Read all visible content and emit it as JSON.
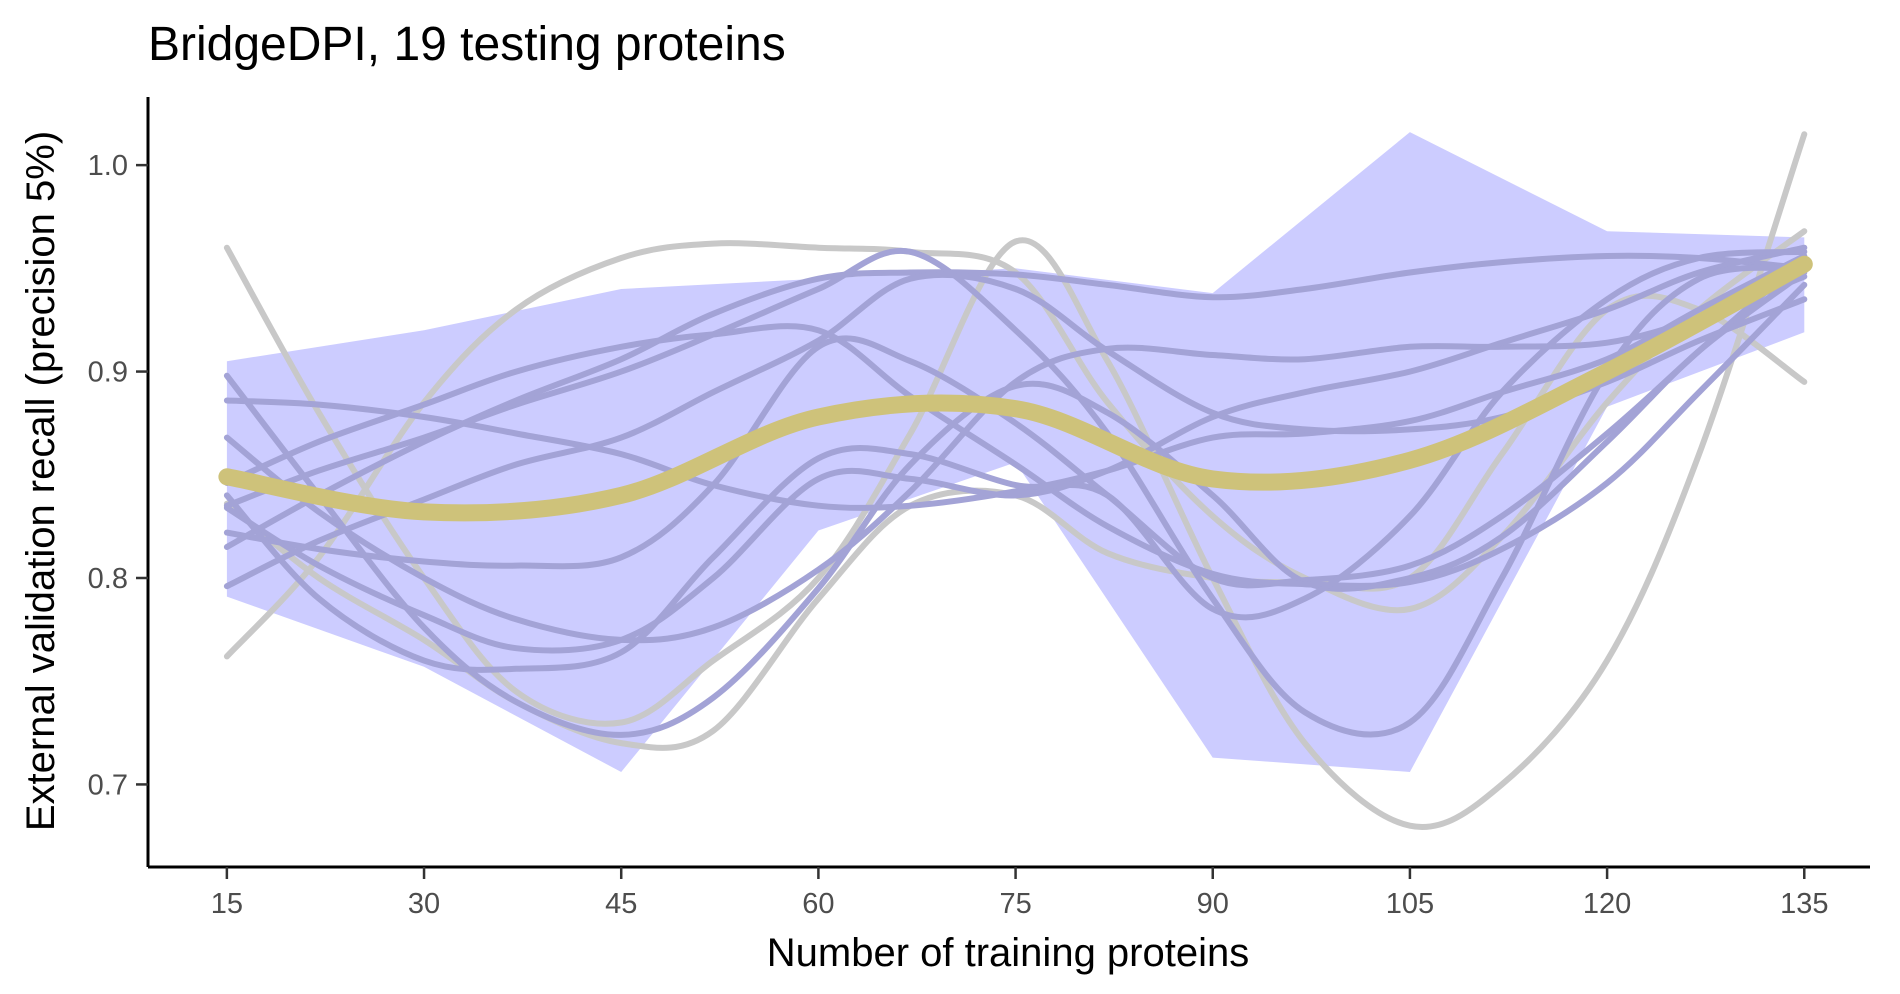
{
  "chart_data": {
    "type": "line",
    "title": "BridgeDPI, 19 testing proteins",
    "xlabel": "Number of training proteins",
    "ylabel": "External validation recall (precision 5%)",
    "x_ticks": [
      15,
      30,
      45,
      60,
      75,
      90,
      105,
      120,
      135
    ],
    "y_ticks": [
      0.7,
      0.8,
      0.9,
      1.0
    ],
    "y_tick_labels": [
      "0.7",
      "0.8",
      "0.9",
      "1.0"
    ],
    "xlim": [
      9,
      140
    ],
    "ylim": [
      0.66,
      1.033
    ],
    "grid": false,
    "legend": "none",
    "x": [
      15,
      30,
      45,
      60,
      75,
      90,
      105,
      120,
      135
    ],
    "colors": {
      "band": "#ccccff",
      "individual_in_band": "#a3a3d6",
      "individual_outlier": "#c8c8c8",
      "mean": "#cec27a"
    },
    "band": {
      "upper": [
        0.905,
        0.92,
        0.94,
        0.945,
        0.95,
        0.938,
        1.016,
        0.968,
        0.965
      ],
      "lower": [
        0.791,
        0.757,
        0.706,
        0.823,
        0.856,
        0.713,
        0.706,
        0.883,
        0.919
      ]
    },
    "mean": [
      0.849,
      0.832,
      0.84,
      0.878,
      0.882,
      0.848,
      0.857,
      0.9,
      0.952
    ],
    "individual_curves": [
      {
        "x": [
          15,
          22,
          30,
          37,
          45,
          52,
          60,
          67,
          75,
          82,
          90,
          97,
          105,
          112,
          120,
          127,
          135
        ],
        "y": [
          0.822,
          0.814,
          0.808,
          0.806,
          0.81,
          0.845,
          0.912,
          0.905,
          0.875,
          0.84,
          0.8,
          0.799,
          0.806,
          0.83,
          0.87,
          0.91,
          0.955
        ],
        "style": "in_band"
      },
      {
        "x": [
          15,
          22,
          30,
          37,
          45,
          52,
          60,
          67,
          75,
          82,
          90,
          97,
          105,
          112,
          120,
          127,
          135
        ],
        "y": [
          0.886,
          0.884,
          0.878,
          0.87,
          0.86,
          0.845,
          0.835,
          0.835,
          0.842,
          0.852,
          0.868,
          0.87,
          0.876,
          0.89,
          0.906,
          0.93,
          0.956
        ],
        "style": "in_band"
      },
      {
        "x": [
          15,
          22,
          30,
          37,
          45,
          52,
          60,
          67,
          75,
          82,
          90,
          97,
          105,
          112,
          120,
          127,
          135
        ],
        "y": [
          0.868,
          0.832,
          0.8,
          0.78,
          0.77,
          0.776,
          0.804,
          0.842,
          0.895,
          0.911,
          0.908,
          0.906,
          0.912,
          0.912,
          0.914,
          0.926,
          0.946
        ],
        "style": "in_band"
      },
      {
        "x": [
          15,
          22,
          30,
          37,
          45,
          52,
          60,
          67,
          75,
          82,
          90,
          97,
          105,
          112,
          120,
          127,
          135
        ],
        "y": [
          0.898,
          0.84,
          0.776,
          0.74,
          0.724,
          0.742,
          0.795,
          0.855,
          0.893,
          0.88,
          0.84,
          0.798,
          0.8,
          0.82,
          0.866,
          0.91,
          0.948
        ],
        "style": "in_band"
      },
      {
        "x": [
          15,
          22,
          30,
          37,
          45,
          52,
          60,
          67,
          75,
          82,
          90,
          97,
          105,
          112,
          120,
          127,
          135
        ],
        "y": [
          0.846,
          0.866,
          0.884,
          0.9,
          0.912,
          0.918,
          0.92,
          0.888,
          0.855,
          0.825,
          0.802,
          0.797,
          0.798,
          0.814,
          0.846,
          0.89,
          0.942
        ],
        "style": "in_band"
      },
      {
        "x": [
          15,
          22,
          30,
          37,
          45,
          52,
          60,
          67,
          75,
          82,
          90,
          97,
          105,
          112,
          120,
          127,
          135
        ],
        "y": [
          0.815,
          0.84,
          0.866,
          0.886,
          0.906,
          0.928,
          0.945,
          0.948,
          0.947,
          0.942,
          0.936,
          0.94,
          0.948,
          0.953,
          0.956,
          0.955,
          0.95
        ],
        "style": "in_band"
      },
      {
        "x": [
          15,
          22,
          30,
          37,
          45,
          52,
          60,
          67,
          75,
          82,
          90,
          97,
          105,
          112,
          120,
          127,
          135
        ],
        "y": [
          0.796,
          0.818,
          0.838,
          0.855,
          0.868,
          0.89,
          0.915,
          0.945,
          0.94,
          0.91,
          0.88,
          0.872,
          0.872,
          0.878,
          0.895,
          0.915,
          0.935
        ],
        "style": "in_band"
      },
      {
        "x": [
          15,
          22,
          30,
          37,
          45,
          52,
          60,
          67,
          75,
          82,
          90,
          97,
          105,
          112,
          120,
          127,
          135
        ],
        "y": [
          0.834,
          0.806,
          0.782,
          0.766,
          0.77,
          0.8,
          0.848,
          0.848,
          0.84,
          0.852,
          0.878,
          0.89,
          0.9,
          0.914,
          0.93,
          0.948,
          0.96
        ],
        "style": "in_band"
      },
      {
        "x": [
          15,
          22,
          30,
          37,
          45,
          52,
          60,
          67,
          75,
          82,
          90,
          97,
          105,
          112,
          120,
          127,
          135
        ],
        "y": [
          0.84,
          0.79,
          0.76,
          0.756,
          0.764,
          0.81,
          0.858,
          0.86,
          0.845,
          0.84,
          0.785,
          0.79,
          0.83,
          0.89,
          0.935,
          0.955,
          0.958
        ],
        "style": "in_band"
      },
      {
        "x": [
          15,
          22,
          30,
          37,
          45,
          52,
          60,
          67,
          75,
          82,
          90,
          97,
          105,
          112,
          120,
          127,
          135
        ],
        "y": [
          0.835,
          0.852,
          0.868,
          0.884,
          0.9,
          0.918,
          0.94,
          0.958,
          0.92,
          0.87,
          0.79,
          0.735,
          0.73,
          0.8,
          0.9,
          0.945,
          0.95
        ],
        "style": "in_band"
      },
      {
        "x": [
          15,
          22,
          30,
          37,
          45,
          52,
          60,
          67,
          75,
          82,
          90,
          97,
          105,
          112,
          120,
          127,
          135
        ],
        "y": [
          0.96,
          0.88,
          0.8,
          0.745,
          0.73,
          0.76,
          0.8,
          0.87,
          0.963,
          0.905,
          0.8,
          0.72,
          0.68,
          0.7,
          0.76,
          0.86,
          1.015
        ],
        "style": "outlier"
      },
      {
        "x": [
          15,
          22,
          30,
          37,
          45,
          52,
          60,
          67,
          75,
          82,
          90,
          97,
          105,
          112,
          120,
          127,
          135
        ],
        "y": [
          0.762,
          0.81,
          0.885,
          0.93,
          0.955,
          0.962,
          0.96,
          0.958,
          0.948,
          0.885,
          0.83,
          0.8,
          0.785,
          0.82,
          0.885,
          0.93,
          0.968
        ],
        "style": "outlier"
      },
      {
        "x": [
          15,
          22,
          30,
          37,
          45,
          52,
          60,
          67,
          75,
          82,
          90,
          97,
          105,
          112,
          120,
          127,
          135
        ],
        "y": [
          0.836,
          0.8,
          0.77,
          0.74,
          0.72,
          0.726,
          0.79,
          0.835,
          0.84,
          0.812,
          0.8,
          0.798,
          0.8,
          0.86,
          0.93,
          0.93,
          0.895
        ],
        "style": "outlier"
      }
    ]
  }
}
